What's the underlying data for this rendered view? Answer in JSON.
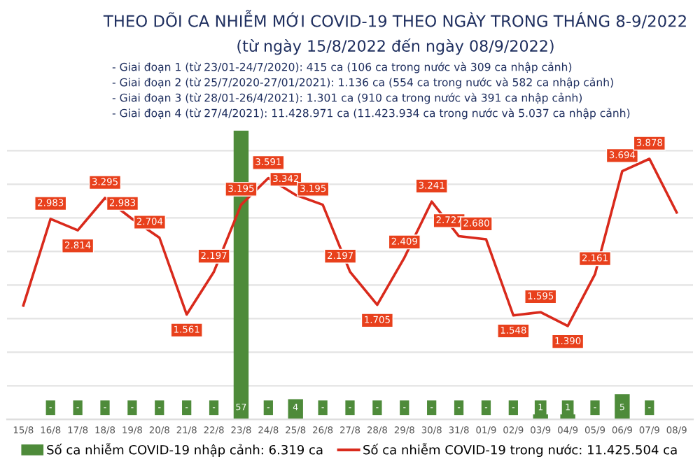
{
  "chart_data": {
    "type": "line",
    "title": "THEO DÕI CA NHIỄM MỚI COVID-19 THEO NGÀY TRONG THÁNG 8-9/2022",
    "subtitle": "(từ ngày 15/8/2022 đến ngày 08/9/2022)",
    "annotations": [
      "- Giai đoạn 1 (từ 23/01-24/7/2020): 415 ca (106 ca trong nước và 309 ca nhập cảnh)",
      "- Giai đoạn 2 (từ 25/7/2020-27/01/2021): 1.136 ca (554 ca trong nước và 582 ca nhập cảnh)",
      "- Giai đoạn 3 (từ 28/01-26/4/2021): 1.301 ca (910 ca trong nước và 391 ca nhập cảnh)",
      "- Giai đoạn 4 (từ 27/4/2021): 11.428.971 ca (11.423.934 ca trong nước và 5.037 ca nhập cảnh)"
    ],
    "categories": [
      "15/8",
      "16/8",
      "17/8",
      "18/8",
      "19/8",
      "20/8",
      "21/8",
      "22/8",
      "23/8",
      "24/8",
      "25/8",
      "26/8",
      "27/8",
      "28/8",
      "29/8",
      "30/8",
      "31/8",
      "01/9",
      "02/9",
      "03/9",
      "04/9",
      "05/9",
      "06/9",
      "07/9",
      "08/9"
    ],
    "series": [
      {
        "name": "Số ca nhiễm COVID-19 nhập cảnh: 6.319 ca",
        "type": "bar",
        "axis": "y2",
        "color": "#4e8b3a",
        "values": [
          null,
          0,
          0,
          0,
          0,
          0,
          0,
          0,
          57,
          0,
          4,
          0,
          0,
          0,
          0,
          0,
          0,
          0,
          0,
          1,
          1,
          0,
          5,
          0,
          null
        ],
        "value_labels": [
          null,
          "-",
          "-",
          "-",
          "-",
          "-",
          "-",
          "-",
          "57",
          "-",
          "4",
          "-",
          "-",
          "-",
          "-",
          "-",
          "-",
          "-",
          "-",
          "1",
          "1",
          "-",
          "5",
          "-",
          null
        ]
      },
      {
        "name": "Số ca nhiễm COVID-19 trong nước: 11.425.504 ca",
        "color": "#d92a1c",
        "values": [
          1695,
          2983,
          2814,
          3295,
          2983,
          2704,
          1561,
          2197,
          3195,
          3591,
          3342,
          3195,
          2197,
          1705,
          2409,
          3241,
          2727,
          2680,
          1548,
          1595,
          1390,
          2161,
          3694,
          3878,
          3080
        ],
        "value_labels": [
          null,
          "2.983",
          "2.814",
          "3.295",
          "2.983",
          "2.704",
          "1.561",
          "2.197",
          "3.195",
          "3.591",
          "3.342",
          "3.195",
          "2.197",
          "1.705",
          "2.409",
          "3.241",
          "2.727",
          "2.680",
          "1.548",
          "1.595",
          "1.390",
          "2.161",
          "3.694",
          "3.878",
          null
        ]
      }
    ],
    "ylim": [
      0,
      4300
    ],
    "yticks": [
      {
        "value": 500,
        "label": null
      },
      {
        "value": 1000,
        "label": null
      },
      {
        "value": 1500,
        "label": null
      },
      {
        "value": 2000,
        "label": null
      },
      {
        "value": 2500,
        "label": null
      },
      {
        "value": 3000,
        "label": null
      },
      {
        "value": 3500,
        "label": null
      },
      {
        "value": 4000,
        "label": null
      }
    ],
    "y2lim": [
      0,
      57
    ],
    "grid": "y",
    "legend": "bottom",
    "tick_labels": "x",
    "line_style": "solid"
  }
}
